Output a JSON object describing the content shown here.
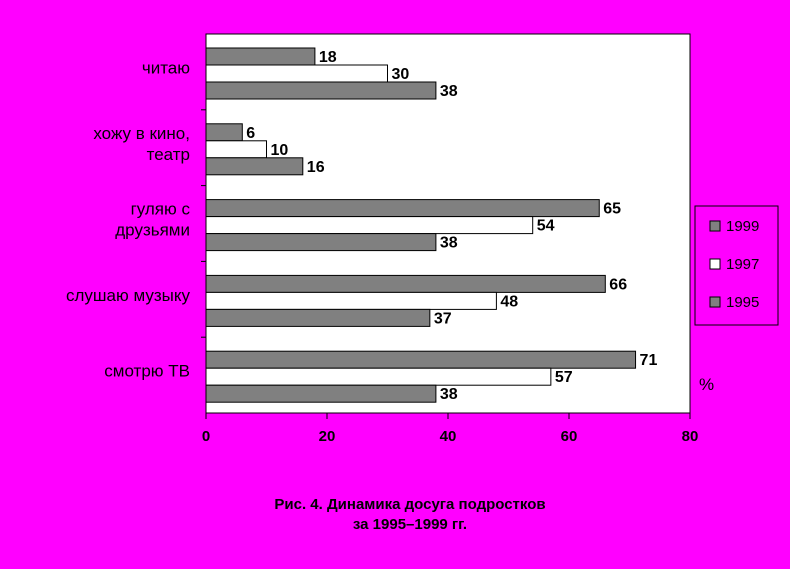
{
  "chart_data": {
    "type": "bar",
    "orientation": "horizontal",
    "categories": [
      "читаю",
      "хожу в кино, театр",
      "гуляю с друзьями",
      "слушаю музыку",
      "смотрю ТВ"
    ],
    "category_lines": [
      [
        "читаю"
      ],
      [
        "хожу в кино,",
        "театр"
      ],
      [
        "гуляю с",
        "друзьями"
      ],
      [
        "слушаю музыку"
      ],
      [
        "смотрю ТВ"
      ]
    ],
    "series": [
      {
        "name": "1999",
        "values": [
          18,
          6,
          65,
          66,
          71
        ],
        "color": "#808080"
      },
      {
        "name": "1997",
        "values": [
          30,
          10,
          54,
          48,
          57
        ],
        "color": "#ffffff"
      },
      {
        "name": "1995",
        "values": [
          38,
          16,
          38,
          37,
          38
        ],
        "color": "#808080"
      }
    ],
    "xlim": [
      0,
      80
    ],
    "xticks": [
      "0",
      "20",
      "40",
      "60",
      "80"
    ],
    "unit_label": "%",
    "legend_position": "right",
    "grid": false,
    "background": "#ff00ff",
    "plot_background": "#ffffff"
  },
  "caption": {
    "line1": "Рис. 4. Динамика досуга подростков",
    "line2": "за 1995–1999 гг."
  }
}
